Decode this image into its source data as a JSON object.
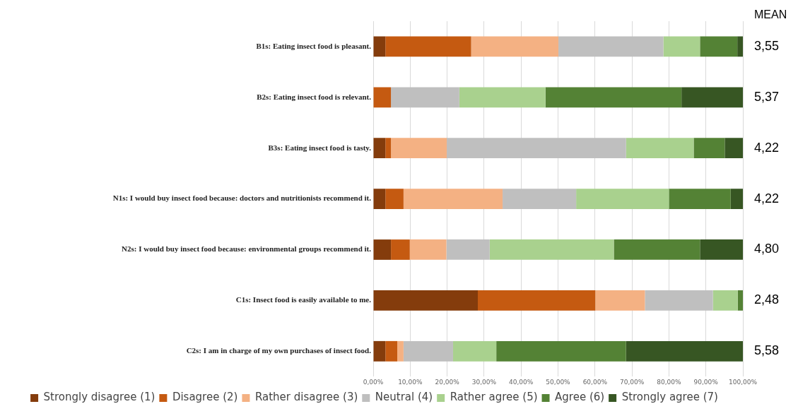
{
  "chart_data": {
    "type": "bar",
    "orientation": "horizontal",
    "stacked": true,
    "categories": [
      "B1s: Eating insect food is pleasant.",
      "B2s: Eating insect food is relevant.",
      "B3s: Eating insect food is tasty.",
      "N1s: I would buy insect food because: doctors and nutritionists recommend it.",
      "N2s: I would buy insect food because: environmental groups recommend it.",
      "C1s: Insect food is easily available to me.",
      "C2s: I am in charge of my own purchases of insect food."
    ],
    "series": [
      {
        "name": "Strongly disagree (1)",
        "color": "#843c0c",
        "values": [
          3.3,
          0,
          3.3,
          3.3,
          4.8,
          28.3,
          3.3
        ]
      },
      {
        "name": "Disagree (2)",
        "color": "#c55a11",
        "values": [
          23.2,
          4.8,
          1.5,
          4.9,
          5.1,
          31.8,
          3.2
        ]
      },
      {
        "name": "Rather disagree (3)",
        "color": "#f4b183",
        "values": [
          23.6,
          0,
          15.1,
          26.8,
          9.9,
          13.4,
          1.7
        ]
      },
      {
        "name": "Neutral (4)",
        "color": "#bfbfbf",
        "values": [
          28.4,
          18.5,
          48.5,
          19.9,
          11.7,
          18.4,
          13.4
        ]
      },
      {
        "name": "Rather agree (5)",
        "color": "#a9d18e",
        "values": [
          9.9,
          23.3,
          18.3,
          25.1,
          33.6,
          6.7,
          11.7
        ]
      },
      {
        "name": "Agree (6)",
        "color": "#548235",
        "values": [
          10.1,
          36.8,
          8.4,
          16.7,
          23.3,
          1.4,
          35.1
        ]
      },
      {
        "name": "Strongly agree (7)",
        "color": "#375623",
        "values": [
          1.5,
          16.6,
          4.9,
          3.3,
          11.6,
          0,
          31.6
        ]
      }
    ],
    "xlim": [
      0,
      100
    ],
    "xticks": [
      {
        "value": 0,
        "label": "0,00%"
      },
      {
        "value": 10,
        "label": "10,00%"
      },
      {
        "value": 20,
        "label": "20,00%"
      },
      {
        "value": 30,
        "label": "30,00%"
      },
      {
        "value": 40,
        "label": "40,00%"
      },
      {
        "value": 50,
        "label": "50,00%"
      },
      {
        "value": 60,
        "label": "60,00%"
      },
      {
        "value": 70,
        "label": "70,00%"
      },
      {
        "value": 80,
        "label": "80,00%"
      },
      {
        "value": 90,
        "label": "90,00%"
      },
      {
        "value": 100,
        "label": "100,00%"
      }
    ],
    "grid": "x",
    "legend": "bottom",
    "annotations": [
      "MEAN",
      "3,55",
      "5,37",
      "4,22",
      "4,22",
      "4,80",
      "2,48",
      "5,58"
    ]
  }
}
